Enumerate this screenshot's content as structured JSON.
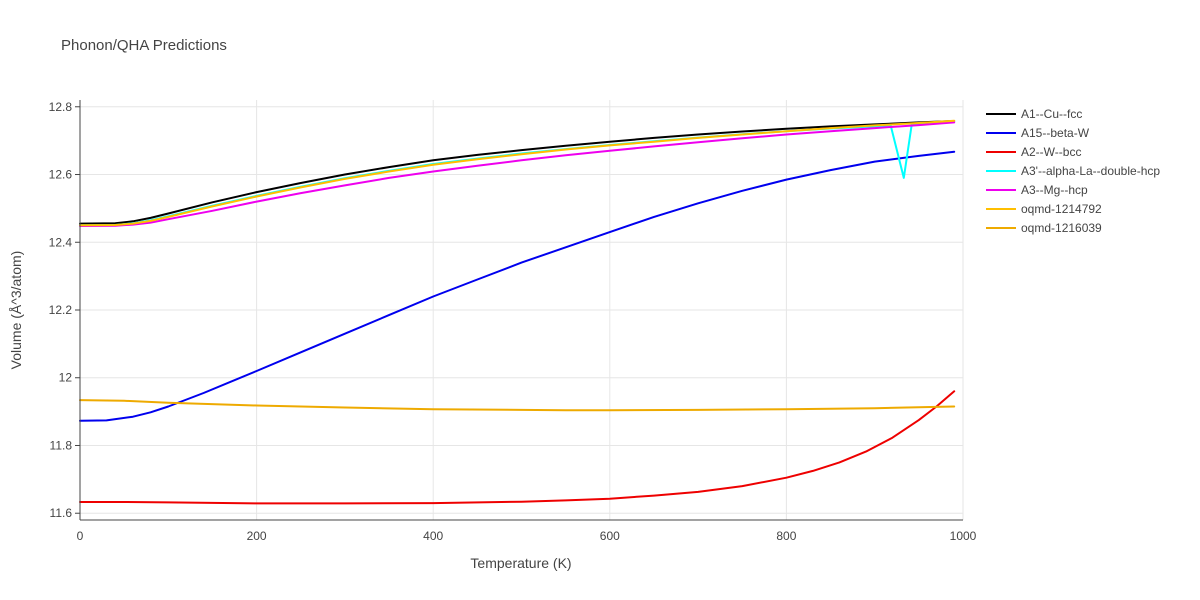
{
  "chart_data": {
    "type": "line",
    "title": "Phonon/QHA Predictions",
    "xlabel": "Temperature (K)",
    "ylabel": "Volume (Å^3/atom)",
    "xlim": [
      0,
      1000
    ],
    "ylim": [
      11.58,
      12.82
    ],
    "xticks": [
      0,
      200,
      400,
      600,
      800,
      1000
    ],
    "xtick_labels": [
      "0",
      "200",
      "400",
      "600",
      "800",
      "1000"
    ],
    "yticks": [
      11.6,
      11.8,
      12.0,
      12.2,
      12.4,
      12.6,
      12.8
    ],
    "ytick_labels": [
      "11.6",
      "11.8",
      "12",
      "12.2",
      "12.4",
      "12.6",
      "12.8"
    ],
    "grid": true,
    "legend_position": "right",
    "series": [
      {
        "name": "A1--Cu--fcc",
        "color": "#000000",
        "x": [
          0,
          40,
          60,
          80,
          100,
          150,
          200,
          250,
          300,
          350,
          400,
          450,
          500,
          550,
          600,
          650,
          700,
          750,
          800,
          850,
          900,
          950,
          990
        ],
        "y": [
          12.455,
          12.456,
          12.462,
          12.472,
          12.485,
          12.518,
          12.548,
          12.575,
          12.6,
          12.622,
          12.642,
          12.658,
          12.672,
          12.685,
          12.697,
          12.708,
          12.718,
          12.727,
          12.735,
          12.742,
          12.748,
          12.754,
          12.758
        ]
      },
      {
        "name": "A15--beta-W",
        "color": "#0000ee",
        "x": [
          0,
          30,
          60,
          80,
          100,
          140,
          200,
          250,
          300,
          350,
          400,
          450,
          500,
          550,
          600,
          650,
          700,
          750,
          800,
          850,
          900,
          950,
          990
        ],
        "y": [
          11.873,
          11.874,
          11.885,
          11.898,
          11.915,
          11.955,
          12.02,
          12.075,
          12.13,
          12.185,
          12.24,
          12.29,
          12.34,
          12.385,
          12.43,
          12.475,
          12.515,
          12.552,
          12.585,
          12.613,
          12.638,
          12.655,
          12.667
        ]
      },
      {
        "name": "A2--W--bcc",
        "color": "#ee0000",
        "x": [
          0,
          50,
          100,
          200,
          300,
          400,
          500,
          550,
          600,
          650,
          700,
          750,
          800,
          830,
          860,
          890,
          920,
          950,
          970,
          990
        ],
        "y": [
          11.633,
          11.633,
          11.632,
          11.629,
          11.629,
          11.63,
          11.634,
          11.638,
          11.643,
          11.652,
          11.663,
          11.68,
          11.705,
          11.725,
          11.75,
          11.782,
          11.823,
          11.875,
          11.915,
          11.96
        ]
      },
      {
        "name": "A3'--alpha-La--double-hcp",
        "color": "#00ffff",
        "x": [
          0,
          40,
          60,
          80,
          100,
          150,
          200,
          250,
          300,
          350,
          400,
          450,
          500,
          550,
          600,
          650,
          700,
          750,
          800,
          850,
          900,
          918,
          933,
          942,
          950,
          990
        ],
        "y": [
          12.45,
          12.451,
          12.456,
          12.465,
          12.477,
          12.508,
          12.537,
          12.564,
          12.589,
          12.611,
          12.631,
          12.647,
          12.662,
          12.675,
          12.687,
          12.698,
          12.709,
          12.719,
          12.728,
          12.736,
          12.742,
          12.746,
          12.59,
          12.749,
          12.75,
          12.756
        ]
      },
      {
        "name": "A3--Mg--hcp",
        "color": "#ee00ee",
        "x": [
          0,
          40,
          60,
          80,
          100,
          150,
          200,
          250,
          300,
          350,
          400,
          450,
          500,
          550,
          600,
          650,
          700,
          750,
          800,
          850,
          900,
          950,
          990
        ],
        "y": [
          12.448,
          12.449,
          12.452,
          12.458,
          12.468,
          12.493,
          12.52,
          12.545,
          12.568,
          12.59,
          12.609,
          12.626,
          12.642,
          12.657,
          12.67,
          12.683,
          12.695,
          12.707,
          12.718,
          12.728,
          12.737,
          12.746,
          12.754
        ]
      },
      {
        "name": "oqmd-1214792",
        "color": "#ffbf00",
        "x": [
          0,
          40,
          60,
          80,
          100,
          150,
          200,
          250,
          300,
          350,
          400,
          450,
          500,
          550,
          600,
          650,
          700,
          750,
          800,
          850,
          900,
          950,
          990
        ],
        "y": [
          12.45,
          12.451,
          12.455,
          12.463,
          12.475,
          12.506,
          12.535,
          12.562,
          12.587,
          12.609,
          12.629,
          12.645,
          12.66,
          12.674,
          12.686,
          12.697,
          12.708,
          12.718,
          12.728,
          12.737,
          12.745,
          12.752,
          12.759
        ]
      },
      {
        "name": "oqmd-1216039",
        "color": "#eeaa00",
        "x": [
          0,
          50,
          100,
          200,
          300,
          400,
          500,
          550,
          600,
          700,
          800,
          900,
          990
        ],
        "y": [
          11.934,
          11.932,
          11.926,
          11.918,
          11.912,
          11.907,
          11.905,
          11.904,
          11.904,
          11.905,
          11.907,
          11.91,
          11.915
        ]
      }
    ]
  }
}
